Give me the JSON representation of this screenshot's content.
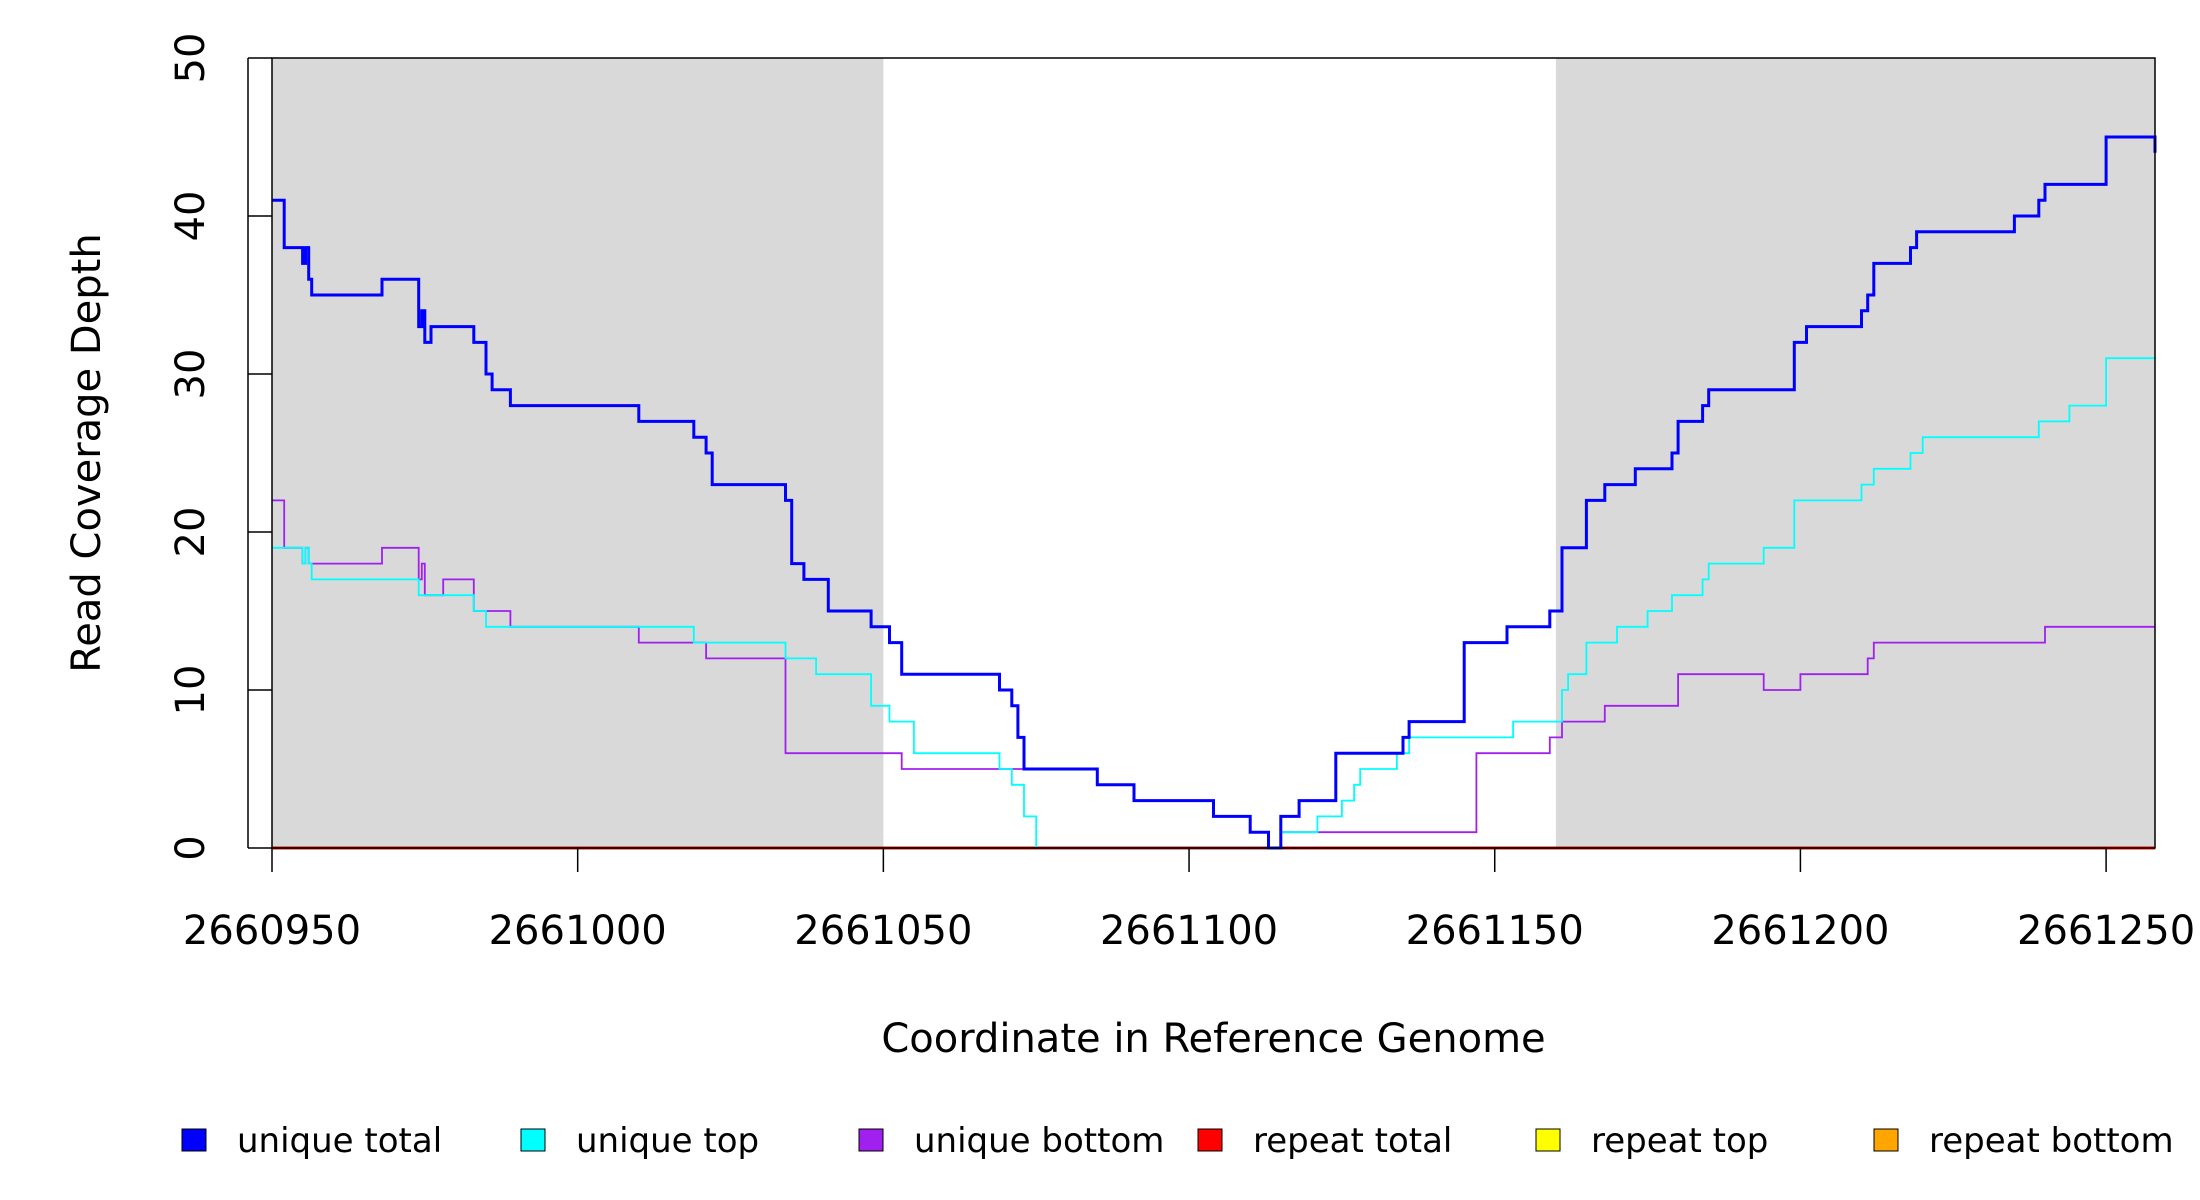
{
  "chart_data": {
    "type": "line",
    "title": "",
    "xlabel": "Coordinate in Reference Genome",
    "ylabel": "Read Coverage Depth",
    "xlim": [
      2660950,
      2661258
    ],
    "ylim": [
      0,
      50
    ],
    "x_ticks": [
      2660950,
      2661000,
      2661050,
      2661100,
      2661150,
      2661200,
      2661250
    ],
    "y_ticks": [
      0,
      10,
      20,
      30,
      40,
      50
    ],
    "grid": false,
    "legend_position": "bottom",
    "shaded_regions": [
      {
        "x0": 2660950,
        "x1": 2661050
      },
      {
        "x0": 2661160,
        "x1": 2661258
      }
    ],
    "series": [
      {
        "name": "unique total",
        "color": "#0000ff",
        "step": true,
        "x": [
          2660950,
          2660952,
          2660955,
          2660955.5,
          2660956,
          2660956.5,
          2660957,
          2660958,
          2660968,
          2660974,
          2660974.5,
          2660975,
          2660976,
          2660978,
          2660983,
          2660985,
          2660986,
          2660989,
          2661010,
          2661019,
          2661021,
          2661022,
          2661034,
          2661035,
          2661037,
          2661041,
          2661048,
          2661051,
          2661053,
          2661069,
          2661071,
          2661072,
          2661073,
          2661075,
          2661085,
          2661091,
          2661104,
          2661110,
          2661113,
          2661115,
          2661118,
          2661124,
          2661128,
          2661135,
          2661136,
          2661145,
          2661152,
          2661159,
          2661161,
          2661165,
          2661168,
          2661173,
          2661179,
          2661180,
          2661184,
          2661185,
          2661199,
          2661201,
          2661210,
          2661211,
          2661212,
          2661218,
          2661219,
          2661220,
          2661235,
          2661239,
          2661240,
          2661250,
          2661258
        ],
        "y": [
          41,
          38,
          37,
          38,
          36,
          35,
          35,
          35,
          36,
          33,
          34,
          32,
          33,
          33,
          32,
          30,
          29,
          28,
          27,
          26,
          25,
          23,
          22,
          18,
          17,
          15,
          14,
          13,
          11,
          10,
          9,
          7,
          5,
          5,
          4,
          3,
          2,
          1,
          0,
          2,
          3,
          6,
          6,
          7,
          8,
          13,
          14,
          15,
          19,
          22,
          23,
          24,
          25,
          27,
          28,
          29,
          32,
          33,
          34,
          35,
          37,
          38,
          39,
          39,
          40,
          41,
          42,
          45,
          44
        ]
      },
      {
        "name": "unique top",
        "color": "#00ffff",
        "step": true,
        "x": [
          2660950,
          2660952,
          2660955,
          2660955.5,
          2660956,
          2660956.5,
          2660957,
          2660958,
          2660974,
          2660975,
          2660983,
          2660985,
          2660989,
          2661019,
          2661021,
          2661034,
          2661039,
          2661041,
          2661048,
          2661051,
          2661055,
          2661069,
          2661071,
          2661073,
          2661075,
          2661113,
          2661115,
          2661117,
          2661121,
          2661125,
          2661127,
          2661128,
          2661134,
          2661136,
          2661148,
          2661153,
          2661159,
          2661161,
          2661162,
          2661165,
          2661170,
          2661175,
          2661179,
          2661184,
          2661185,
          2661194,
          2661199,
          2661210,
          2661212,
          2661218,
          2661220,
          2661239,
          2661244,
          2661250,
          2661258
        ],
        "y": [
          19,
          19,
          18,
          19,
          18,
          17,
          17,
          17,
          16,
          16,
          15,
          14,
          14,
          13,
          13,
          12,
          11,
          11,
          9,
          8,
          6,
          5,
          4,
          2,
          0,
          0,
          1,
          1,
          2,
          3,
          4,
          5,
          6,
          7,
          7,
          8,
          8,
          10,
          11,
          13,
          14,
          15,
          16,
          17,
          18,
          19,
          22,
          23,
          24,
          25,
          26,
          27,
          28,
          31,
          31
        ]
      },
      {
        "name": "unique bottom",
        "color": "#a020f0",
        "step": true,
        "x": [
          2660950,
          2660952,
          2660955,
          2660955.5,
          2660956,
          2660956.5,
          2660958,
          2660968,
          2660974,
          2660974.5,
          2660975,
          2660976,
          2660978,
          2660983,
          2660985,
          2660989,
          2661010,
          2661019,
          2661021,
          2661034,
          2661050,
          2661053,
          2661085,
          2661091,
          2661104,
          2661110,
          2661113,
          2661115,
          2661118,
          2661147,
          2661159,
          2661161,
          2661168,
          2661180,
          2661194,
          2661200,
          2661211,
          2661212,
          2661239,
          2661240,
          2661258
        ],
        "y": [
          22,
          19,
          18,
          19,
          18,
          18,
          18,
          19,
          17,
          18,
          16,
          16,
          17,
          15,
          15,
          14,
          13,
          13,
          12,
          6,
          6,
          5,
          4,
          3,
          2,
          1,
          0,
          1,
          1,
          6,
          7,
          8,
          9,
          11,
          10,
          11,
          12,
          13,
          13,
          14,
          14
        ]
      },
      {
        "name": "repeat total",
        "color": "#ff0000",
        "step": true,
        "x": [
          2660950,
          2661258
        ],
        "y": [
          0,
          0
        ]
      },
      {
        "name": "repeat top",
        "color": "#ffff00",
        "step": true,
        "x": [
          2660950,
          2661258
        ],
        "y": [
          0,
          0
        ]
      },
      {
        "name": "repeat bottom",
        "color": "#ffa500",
        "step": true,
        "x": [
          2660950,
          2661258
        ],
        "y": [
          0,
          0
        ]
      }
    ]
  }
}
